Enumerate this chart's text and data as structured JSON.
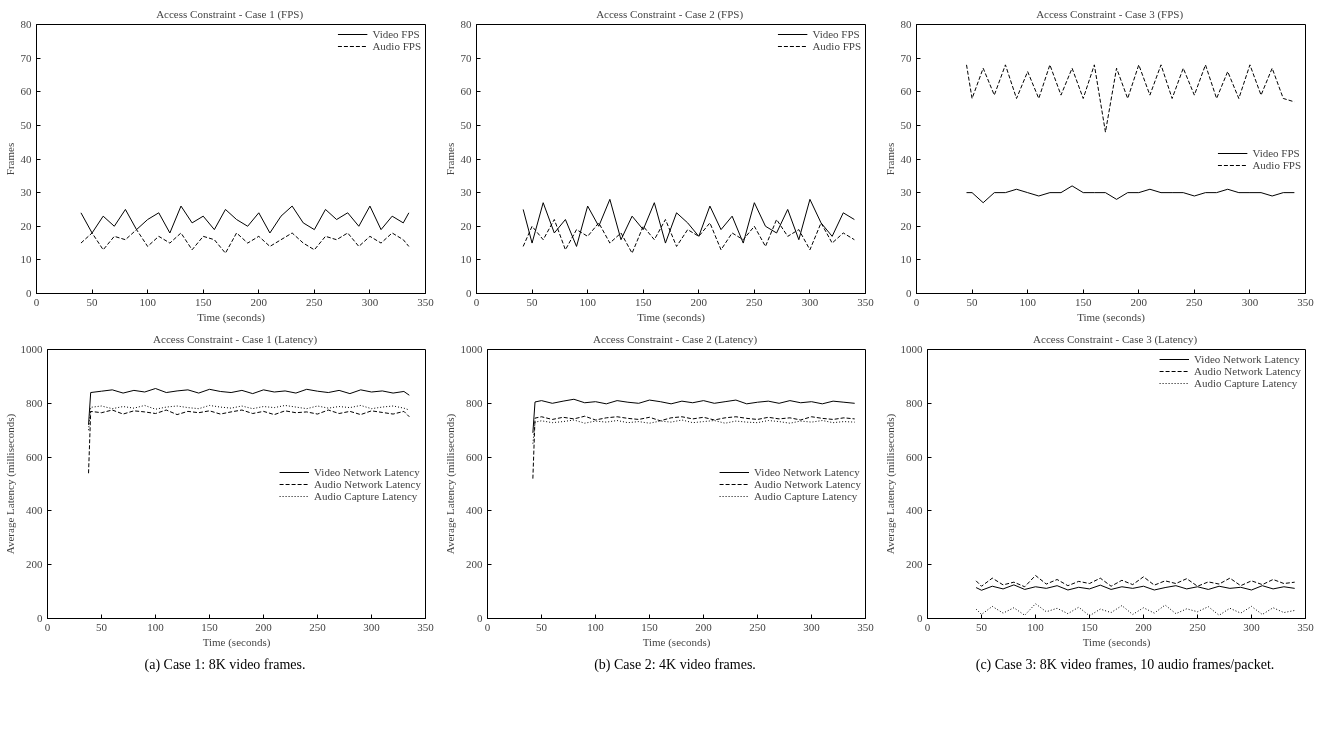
{
  "chart_data": [
    {
      "type": "line",
      "title": "Access Constraint - Case 1  (FPS)",
      "xlabel": "Time (seconds)",
      "ylabel": "Frames",
      "xlim": [
        0,
        350
      ],
      "xticks": [
        0,
        50,
        100,
        150,
        200,
        250,
        300,
        350
      ],
      "ylim": [
        0,
        80
      ],
      "yticks": [
        0,
        10,
        20,
        30,
        40,
        50,
        60,
        70,
        80
      ],
      "grid": false,
      "legend": "top right",
      "x": [
        40,
        50,
        60,
        70,
        80,
        90,
        100,
        110,
        120,
        130,
        140,
        150,
        160,
        170,
        180,
        190,
        200,
        210,
        220,
        230,
        240,
        250,
        260,
        270,
        280,
        290,
        300,
        310,
        320,
        330,
        335
      ],
      "series": [
        {
          "name": "Video FPS",
          "color": "#000000",
          "line_style": "solid",
          "values": [
            24,
            18,
            23,
            20,
            25,
            19,
            22,
            24,
            18,
            26,
            21,
            23,
            19,
            25,
            22,
            20,
            24,
            18,
            23,
            26,
            21,
            19,
            25,
            22,
            24,
            20,
            26,
            19,
            23,
            21,
            24
          ]
        },
        {
          "name": "Audio FPS",
          "color": "#000000",
          "line_style": "dashed",
          "values": [
            15,
            18,
            13,
            17,
            16,
            19,
            14,
            17,
            15,
            18,
            13,
            17,
            16,
            12,
            18,
            15,
            17,
            14,
            16,
            18,
            15,
            13,
            17,
            16,
            18,
            14,
            17,
            15,
            18,
            16,
            14
          ]
        }
      ]
    },
    {
      "type": "line",
      "title": "Access Constraint - Case 2  (FPS)",
      "xlabel": "Time (seconds)",
      "ylabel": "Frames",
      "xlim": [
        0,
        350
      ],
      "xticks": [
        0,
        50,
        100,
        150,
        200,
        250,
        300,
        350
      ],
      "ylim": [
        0,
        80
      ],
      "yticks": [
        0,
        10,
        20,
        30,
        40,
        50,
        60,
        70,
        80
      ],
      "grid": false,
      "legend": "top right",
      "x": [
        42,
        50,
        60,
        70,
        80,
        90,
        100,
        110,
        120,
        130,
        140,
        150,
        160,
        170,
        180,
        190,
        200,
        210,
        220,
        230,
        240,
        250,
        260,
        270,
        280,
        290,
        300,
        310,
        320,
        330,
        340
      ],
      "series": [
        {
          "name": "Video FPS",
          "color": "#000000",
          "line_style": "solid",
          "values": [
            25,
            15,
            27,
            18,
            22,
            14,
            26,
            20,
            28,
            16,
            23,
            19,
            27,
            15,
            24,
            21,
            17,
            26,
            19,
            23,
            15,
            27,
            20,
            18,
            25,
            16,
            28,
            21,
            17,
            24,
            22
          ]
        },
        {
          "name": "Audio FPS",
          "color": "#000000",
          "line_style": "dashed",
          "values": [
            14,
            20,
            16,
            22,
            13,
            19,
            17,
            21,
            15,
            18,
            12,
            20,
            16,
            22,
            14,
            19,
            17,
            21,
            13,
            18,
            16,
            20,
            14,
            22,
            17,
            19,
            13,
            21,
            15,
            18,
            16
          ]
        }
      ]
    },
    {
      "type": "line",
      "title": "Access Constraint - Case 3  (FPS)",
      "xlabel": "Time (seconds)",
      "ylabel": "Frames",
      "xlim": [
        0,
        350
      ],
      "xticks": [
        0,
        50,
        100,
        150,
        200,
        250,
        300,
        350
      ],
      "ylim": [
        0,
        80
      ],
      "yticks": [
        0,
        10,
        20,
        30,
        40,
        50,
        60,
        70,
        80
      ],
      "grid": false,
      "legend": "center right",
      "x": [
        45,
        50,
        60,
        70,
        80,
        90,
        100,
        110,
        120,
        130,
        140,
        150,
        160,
        170,
        180,
        190,
        200,
        210,
        220,
        230,
        240,
        250,
        260,
        270,
        280,
        290,
        300,
        310,
        320,
        330,
        340
      ],
      "series": [
        {
          "name": "Video FPS",
          "color": "#000000",
          "line_style": "solid",
          "values": [
            30,
            30,
            27,
            30,
            30,
            31,
            30,
            29,
            30,
            30,
            32,
            30,
            30,
            30,
            28,
            30,
            30,
            31,
            30,
            30,
            30,
            29,
            30,
            30,
            31,
            30,
            30,
            30,
            29,
            30,
            30
          ]
        },
        {
          "name": "Audio FPS",
          "color": "#000000",
          "line_style": "dashed",
          "values": [
            68,
            58,
            67,
            59,
            68,
            58,
            66,
            58,
            68,
            59,
            67,
            58,
            68,
            48,
            67,
            58,
            68,
            59,
            68,
            58,
            67,
            59,
            68,
            58,
            66,
            58,
            68,
            59,
            67,
            58,
            57
          ]
        }
      ]
    },
    {
      "type": "line",
      "title": "Access Constraint - Case 1  (Latency)",
      "xlabel": "Time (seconds)",
      "ylabel": "Average Latency (milliseconds)",
      "xlim": [
        0,
        350
      ],
      "xticks": [
        0,
        50,
        100,
        150,
        200,
        250,
        300,
        350
      ],
      "ylim": [
        0,
        1000
      ],
      "yticks": [
        0,
        200,
        400,
        600,
        800,
        1000
      ],
      "grid": false,
      "legend": "center right",
      "annotations": [
        "(a)  Case 1: 8K video frames."
      ],
      "x": [
        38,
        40,
        50,
        60,
        70,
        80,
        90,
        100,
        110,
        120,
        130,
        140,
        150,
        160,
        170,
        180,
        190,
        200,
        210,
        220,
        230,
        240,
        250,
        260,
        270,
        280,
        290,
        300,
        310,
        320,
        330,
        335
      ],
      "series": [
        {
          "name": "Video Network Latency",
          "color": "#000000",
          "line_style": "solid",
          "values": [
            720,
            840,
            845,
            850,
            838,
            848,
            842,
            855,
            840,
            846,
            850,
            838,
            852,
            844,
            840,
            848,
            836,
            850,
            842,
            846,
            838,
            852,
            845,
            840,
            848,
            836,
            850,
            842,
            846,
            838,
            844,
            830
          ]
        },
        {
          "name": "Audio Network Latency",
          "color": "#000000",
          "line_style": "dashed",
          "values": [
            540,
            770,
            765,
            775,
            760,
            772,
            768,
            762,
            775,
            758,
            770,
            765,
            772,
            760,
            768,
            775,
            762,
            770,
            758,
            772,
            765,
            768,
            760,
            775,
            762,
            770,
            758,
            772,
            766,
            760,
            770,
            750
          ]
        },
        {
          "name": "Audio Capture Latency",
          "color": "#000000",
          "line_style": "dotted",
          "values": [
            700,
            785,
            790,
            780,
            788,
            782,
            792,
            778,
            786,
            790,
            784,
            780,
            792,
            786,
            782,
            790,
            780,
            788,
            784,
            792,
            786,
            780,
            790,
            782,
            788,
            784,
            792,
            780,
            786,
            790,
            782,
            775
          ]
        }
      ]
    },
    {
      "type": "line",
      "title": "Access Constraint - Case 2  (Latency)",
      "xlabel": "Time (seconds)",
      "ylabel": "Average Latency (milliseconds)",
      "xlim": [
        0,
        350
      ],
      "xticks": [
        0,
        50,
        100,
        150,
        200,
        250,
        300,
        350
      ],
      "ylim": [
        0,
        1000
      ],
      "yticks": [
        0,
        200,
        400,
        600,
        800,
        1000
      ],
      "grid": false,
      "legend": "center right",
      "annotations": [
        "(b)  Case 2: 4K video frames."
      ],
      "x": [
        42,
        44,
        50,
        60,
        70,
        80,
        90,
        100,
        110,
        120,
        130,
        140,
        150,
        160,
        170,
        180,
        190,
        200,
        210,
        220,
        230,
        240,
        250,
        260,
        270,
        280,
        290,
        300,
        310,
        320,
        330,
        340
      ],
      "series": [
        {
          "name": "Video Network Latency",
          "color": "#000000",
          "line_style": "solid",
          "values": [
            690,
            805,
            810,
            800,
            808,
            815,
            802,
            806,
            798,
            810,
            804,
            800,
            812,
            806,
            798,
            808,
            802,
            810,
            800,
            806,
            812,
            798,
            804,
            808,
            800,
            810,
            802,
            806,
            798,
            808,
            804,
            800
          ]
        },
        {
          "name": "Audio Network Latency",
          "color": "#000000",
          "line_style": "dashed",
          "values": [
            520,
            745,
            750,
            740,
            748,
            742,
            752,
            738,
            746,
            750,
            744,
            740,
            748,
            735,
            746,
            750,
            742,
            748,
            738,
            746,
            750,
            744,
            740,
            748,
            742,
            746,
            738,
            750,
            744,
            740,
            746,
            742
          ]
        },
        {
          "name": "Audio Capture Latency",
          "color": "#000000",
          "line_style": "dotted",
          "values": [
            650,
            730,
            735,
            728,
            732,
            738,
            726,
            734,
            730,
            736,
            728,
            732,
            726,
            734,
            730,
            738,
            728,
            732,
            736,
            726,
            734,
            730,
            728,
            736,
            732,
            726,
            734,
            730,
            736,
            728,
            732,
            730
          ]
        }
      ]
    },
    {
      "type": "line",
      "title": "Access Constraint - Case 3  (Latency)",
      "xlabel": "Time (seconds)",
      "ylabel": "Average Latency (milliseconds)",
      "xlim": [
        0,
        350
      ],
      "xticks": [
        0,
        50,
        100,
        150,
        200,
        250,
        300,
        350
      ],
      "ylim": [
        0,
        1000
      ],
      "yticks": [
        0,
        200,
        400,
        600,
        800,
        1000
      ],
      "grid": false,
      "legend": "top right",
      "annotations": [
        "(c)  Case 3: 8K video frames, 10 audio frames/packet."
      ],
      "x": [
        45,
        50,
        60,
        70,
        80,
        90,
        100,
        110,
        120,
        130,
        140,
        150,
        160,
        170,
        180,
        190,
        200,
        210,
        220,
        230,
        240,
        250,
        260,
        270,
        280,
        290,
        300,
        310,
        320,
        330,
        340
      ],
      "series": [
        {
          "name": "Video Network Latency",
          "color": "#000000",
          "line_style": "solid",
          "values": [
            115,
            105,
            120,
            110,
            125,
            108,
            118,
            112,
            122,
            106,
            116,
            110,
            124,
            108,
            118,
            112,
            120,
            106,
            115,
            122,
            110,
            118,
            108,
            120,
            112,
            116,
            106,
            122,
            110,
            118,
            112
          ]
        },
        {
          "name": "Audio Network Latency",
          "color": "#000000",
          "line_style": "dashed",
          "values": [
            140,
            120,
            150,
            125,
            135,
            118,
            160,
            128,
            145,
            122,
            138,
            130,
            150,
            120,
            142,
            126,
            155,
            124,
            140,
            130,
            148,
            120,
            136,
            128,
            150,
            122,
            140,
            126,
            145,
            130,
            135
          ]
        },
        {
          "name": "Audio Capture Latency",
          "color": "#000000",
          "line_style": "dotted",
          "values": [
            35,
            15,
            45,
            20,
            40,
            12,
            55,
            25,
            38,
            18,
            42,
            10,
            35,
            22,
            48,
            15,
            40,
            20,
            50,
            18,
            36,
            25,
            44,
            12,
            38,
            20,
            45,
            15,
            40,
            22,
            30
          ]
        }
      ]
    }
  ]
}
